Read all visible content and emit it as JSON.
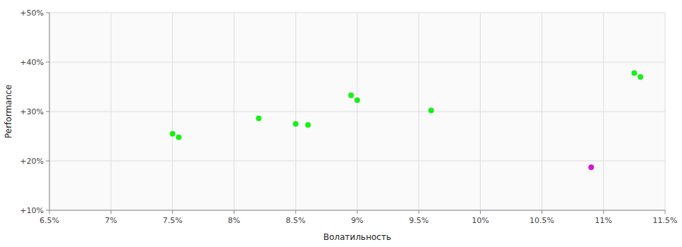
{
  "chart_data": {
    "type": "scatter",
    "xlabel": "Волатильность",
    "ylabel": "Performance",
    "xlim": [
      0.065,
      0.115
    ],
    "ylim": [
      0.1,
      0.5
    ],
    "xticks": [
      {
        "value": 0.065,
        "label": "6.5%"
      },
      {
        "value": 0.07,
        "label": "7%"
      },
      {
        "value": 0.075,
        "label": "7.5%"
      },
      {
        "value": 0.08,
        "label": "8%"
      },
      {
        "value": 0.085,
        "label": "8.5%"
      },
      {
        "value": 0.09,
        "label": "9%"
      },
      {
        "value": 0.095,
        "label": "9.5%"
      },
      {
        "value": 0.1,
        "label": "10%"
      },
      {
        "value": 0.105,
        "label": "10.5%"
      },
      {
        "value": 0.11,
        "label": "11%"
      },
      {
        "value": 0.115,
        "label": "11.5%"
      }
    ],
    "yticks": [
      {
        "value": 0.1,
        "label": "+10%"
      },
      {
        "value": 0.2,
        "label": "+20%"
      },
      {
        "value": 0.3,
        "label": "+30%"
      },
      {
        "value": 0.4,
        "label": "+40%"
      },
      {
        "value": 0.5,
        "label": "+50%"
      }
    ],
    "grid": true,
    "marker": "circle",
    "series": [
      {
        "color": "#00ee00",
        "x": [
          0.075,
          0.0755,
          0.082,
          0.085,
          0.086,
          0.0895,
          0.09,
          0.096,
          0.1125,
          0.113
        ],
        "values": [
          0.255,
          0.248,
          0.286,
          0.275,
          0.273,
          0.333,
          0.323,
          0.302,
          0.378,
          0.37
        ]
      },
      {
        "color": "#cc00cc",
        "x": [
          0.109
        ],
        "values": [
          0.187
        ]
      }
    ]
  }
}
